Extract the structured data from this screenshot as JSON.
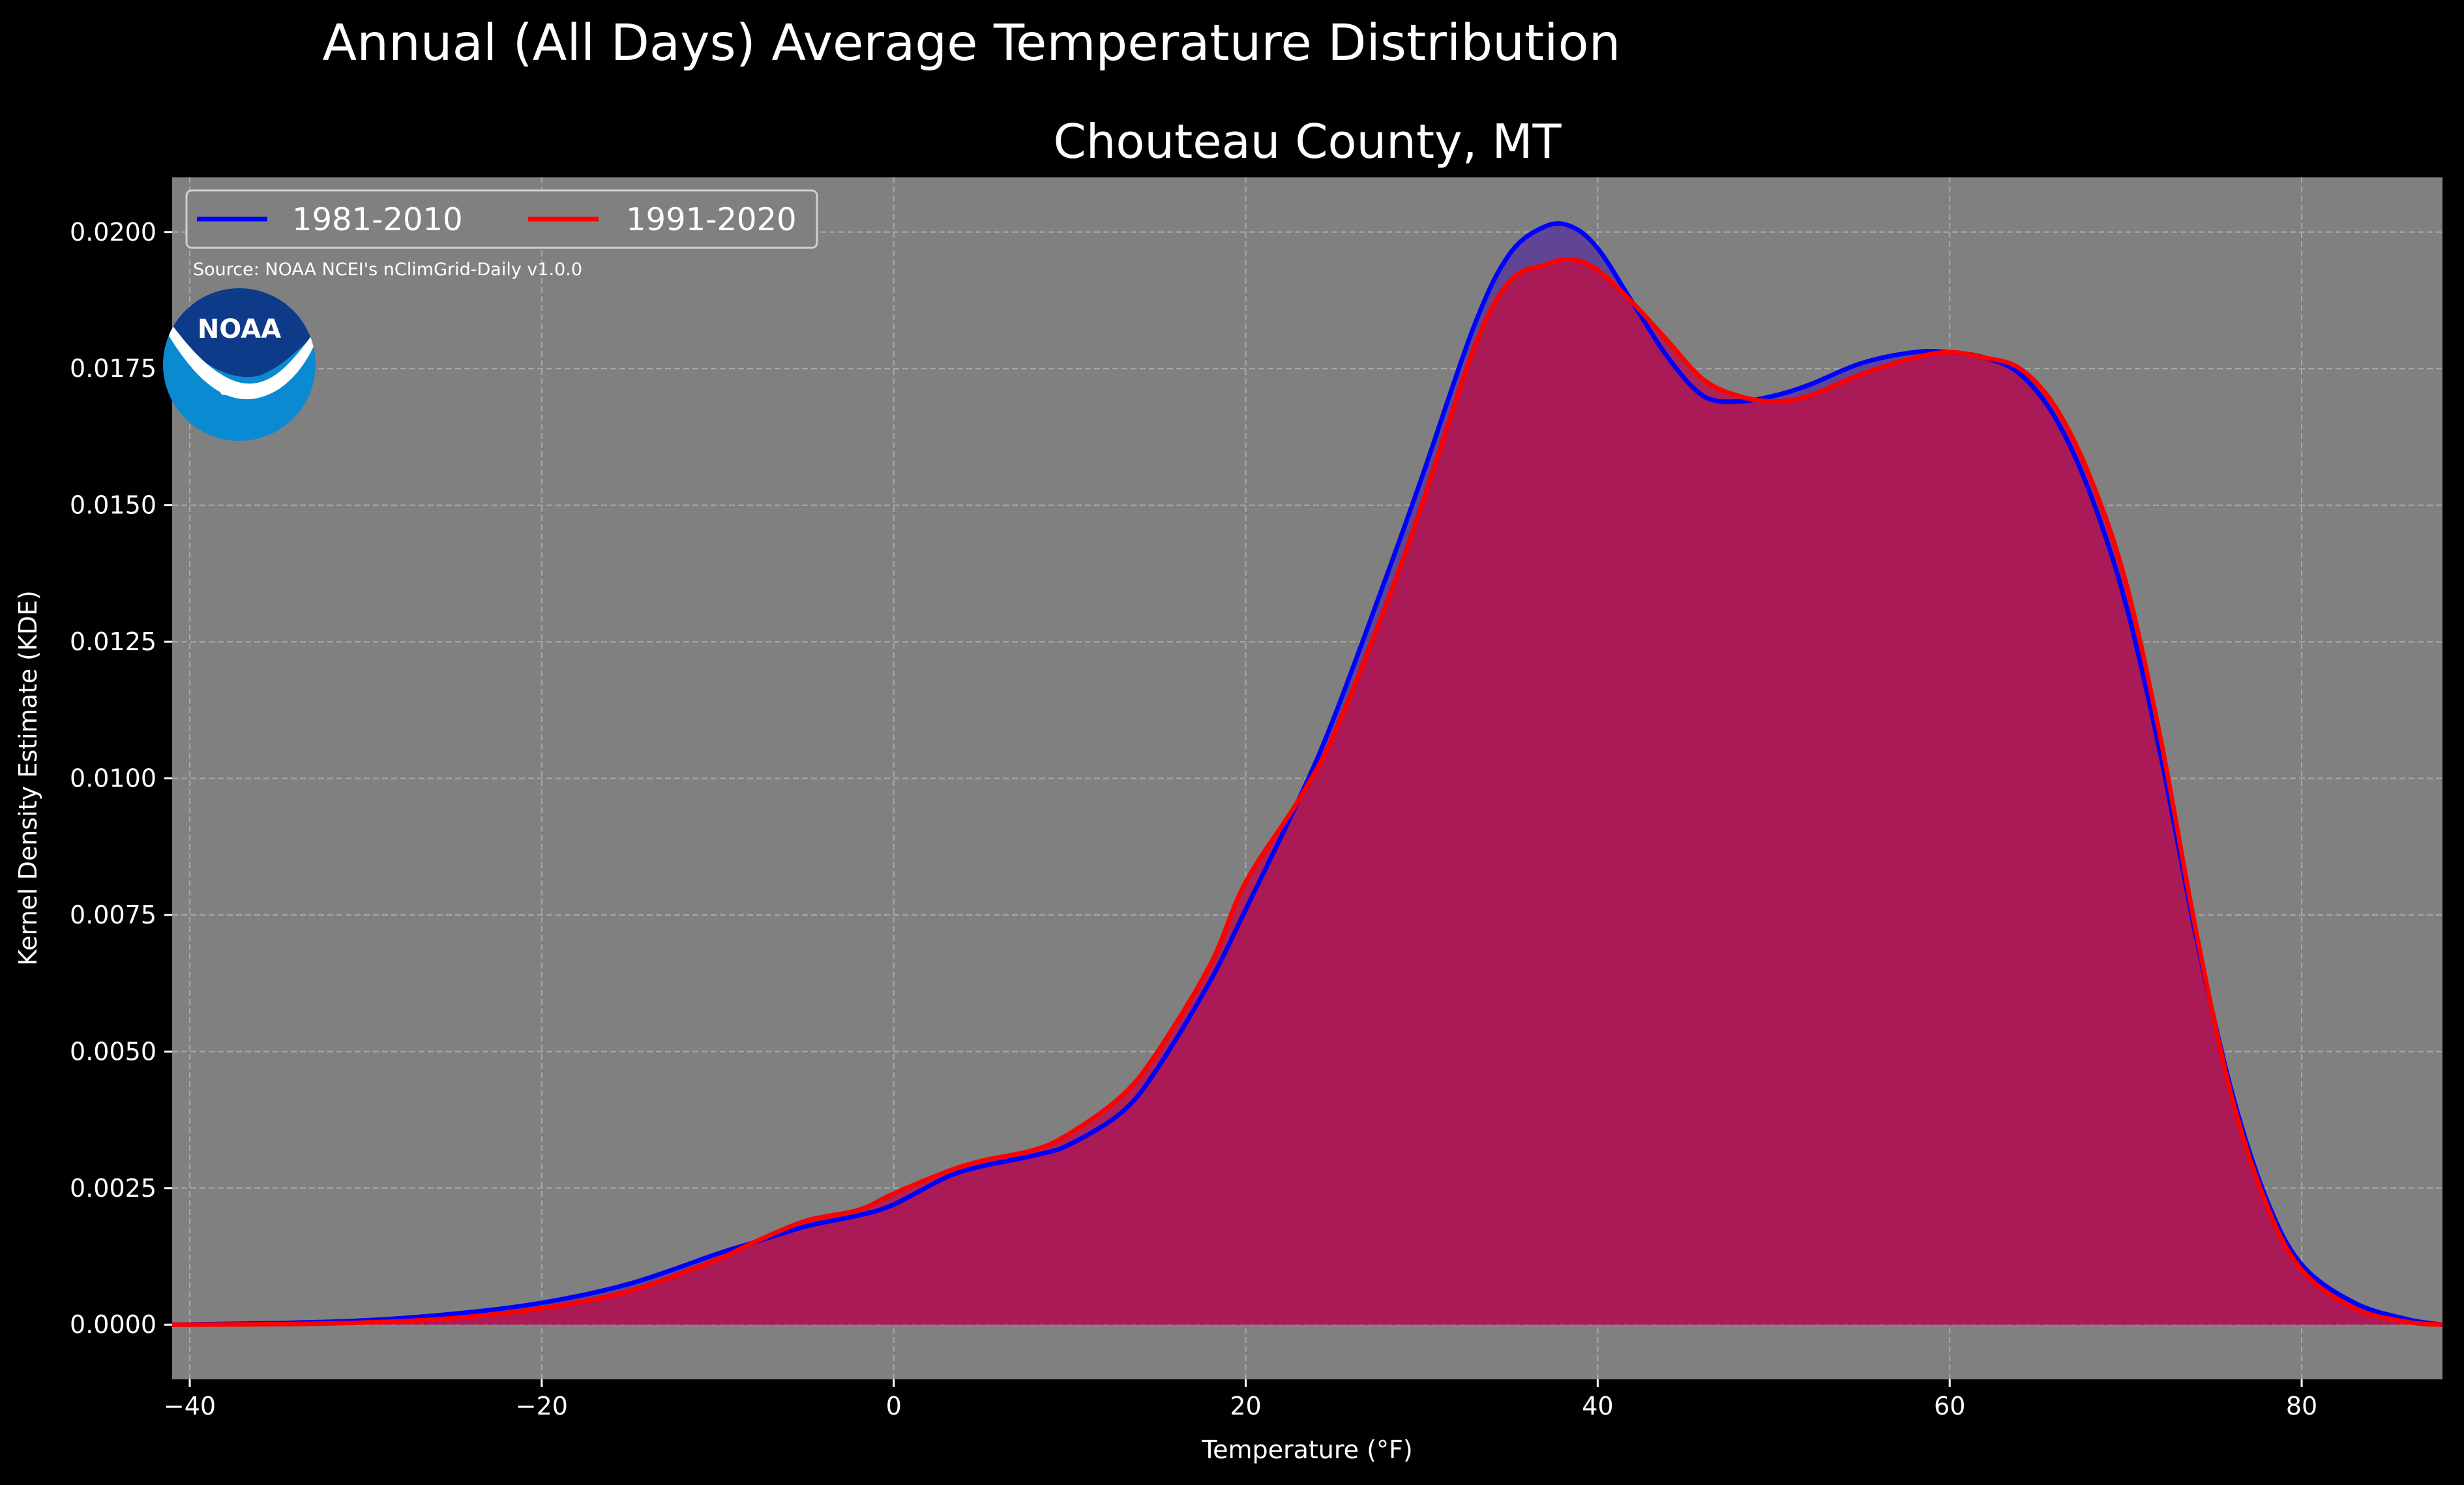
{
  "chart_data": {
    "type": "area",
    "title": "Annual (All Days) Average Temperature Distribution",
    "subtitle": "Chouteau County, MT",
    "xlabel": "Temperature (°F)",
    "ylabel": "Kernel Density Estimate (KDE)",
    "source": "Source: NOAA NCEI's nClimGrid-Daily v1.0.0",
    "logo_text": "NOAA",
    "xlim": [
      -41,
      88
    ],
    "ylim": [
      -0.001,
      0.021
    ],
    "xticks": [
      -40,
      -20,
      0,
      20,
      40,
      60,
      80
    ],
    "xtick_labels": [
      "−40",
      "−20",
      "0",
      "20",
      "40",
      "60",
      "80"
    ],
    "yticks": [
      0,
      0.0025,
      0.005,
      0.0075,
      0.01,
      0.0125,
      0.015,
      0.0175,
      0.02
    ],
    "ytick_labels": [
      "0.0000",
      "0.0025",
      "0.0050",
      "0.0075",
      "0.0100",
      "0.0125",
      "0.0150",
      "0.0175",
      "0.0200"
    ],
    "grid": true,
    "legend_position": "top-left",
    "background": "#808080",
    "series": [
      {
        "name": "1981-2010",
        "color": "#0000ff",
        "fill": "#5a3c96",
        "x": [
          -41,
          -35,
          -30,
          -25,
          -20,
          -15,
          -10,
          -8,
          -5,
          -2,
          0,
          3,
          5,
          8,
          10,
          13,
          15,
          18,
          20,
          23,
          25,
          28,
          30,
          33,
          35,
          37,
          38.5,
          40,
          42,
          44,
          46,
          48,
          50,
          52,
          55,
          58,
          60,
          62,
          64,
          66,
          68,
          70,
          72,
          74,
          76,
          78,
          80,
          83,
          86,
          88
        ],
        "y": [
          0,
          3e-05,
          8e-05,
          0.0002,
          0.0004,
          0.00075,
          0.0013,
          0.0015,
          0.0018,
          0.002,
          0.0022,
          0.0027,
          0.0029,
          0.0031,
          0.0033,
          0.0039,
          0.0047,
          0.0063,
          0.0076,
          0.0096,
          0.0111,
          0.0137,
          0.0155,
          0.0183,
          0.0196,
          0.0201,
          0.0201,
          0.0197,
          0.0187,
          0.0177,
          0.017,
          0.0169,
          0.017,
          0.0172,
          0.0176,
          0.0178,
          0.0178,
          0.0177,
          0.0174,
          0.0166,
          0.0152,
          0.0132,
          0.0104,
          0.0071,
          0.0043,
          0.0023,
          0.0011,
          0.0004,
          0.0001,
          0
        ]
      },
      {
        "name": "1991-2020",
        "color": "#ff0000",
        "fill": "#b4144f",
        "x": [
          -41,
          -35,
          -30,
          -25,
          -20,
          -15,
          -10,
          -8,
          -5,
          -2,
          0,
          3,
          5,
          8,
          10,
          13,
          15,
          18,
          20,
          23,
          25,
          28,
          30,
          33,
          35,
          37,
          38.5,
          40,
          42,
          44,
          46,
          48,
          50,
          52,
          55,
          58,
          60,
          62,
          64,
          66,
          68,
          70,
          72,
          74,
          76,
          78,
          80,
          83,
          86,
          88
        ],
        "y": [
          0,
          1e-05,
          4e-05,
          0.00012,
          0.0003,
          0.00062,
          0.0012,
          0.0015,
          0.0019,
          0.0021,
          0.0024,
          0.0028,
          0.003,
          0.0032,
          0.0035,
          0.0042,
          0.005,
          0.0066,
          0.0081,
          0.0096,
          0.0108,
          0.0132,
          0.015,
          0.0179,
          0.0191,
          0.0194,
          0.0195,
          0.0193,
          0.0187,
          0.018,
          0.0173,
          0.017,
          0.0169,
          0.017,
          0.0174,
          0.0177,
          0.0178,
          0.0177,
          0.0175,
          0.0168,
          0.0155,
          0.0136,
          0.0107,
          0.0072,
          0.0042,
          0.0022,
          0.001,
          0.0003,
          5e-05,
          0
        ]
      }
    ]
  }
}
